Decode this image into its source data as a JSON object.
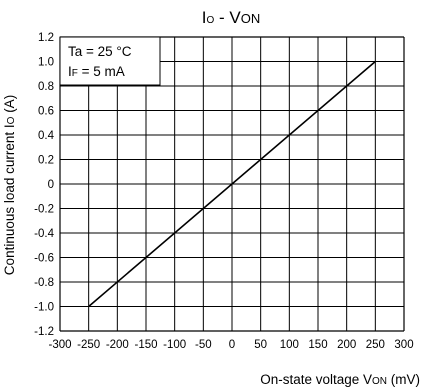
{
  "chart_data": {
    "type": "line",
    "title": {
      "main": "I",
      "main_sub": "O",
      "sep": " - V",
      "sep_sub": "ON"
    },
    "xlabel": {
      "main": "On-state voltage V",
      "sub": "ON",
      "unit": " (mV)"
    },
    "ylabel": {
      "main": "Continuous load current I",
      "sub": "O",
      "unit": " (A)"
    },
    "xlim": [
      -300,
      300
    ],
    "ylim": [
      -1.2,
      1.2
    ],
    "x_ticks": [
      "-300",
      "-250",
      "-200",
      "-150",
      "-100",
      "-50",
      "0",
      "50",
      "100",
      "150",
      "200",
      "250",
      "300"
    ],
    "y_ticks": [
      "1.2",
      "1.0",
      "0.8",
      "0.6",
      "0.4",
      "0.2",
      "0",
      "-0.2",
      "-0.4",
      "-0.6",
      "-0.8",
      "-1.0",
      "-1.2"
    ],
    "grid": true,
    "annotation": {
      "line1": "Ta = 25 °C",
      "line2_main": "I",
      "line2_sub": "F",
      "line2_rest": " = 5 mA"
    },
    "series": [
      {
        "x": [
          -250,
          250
        ],
        "y": [
          -1.0,
          1.0
        ]
      }
    ]
  }
}
